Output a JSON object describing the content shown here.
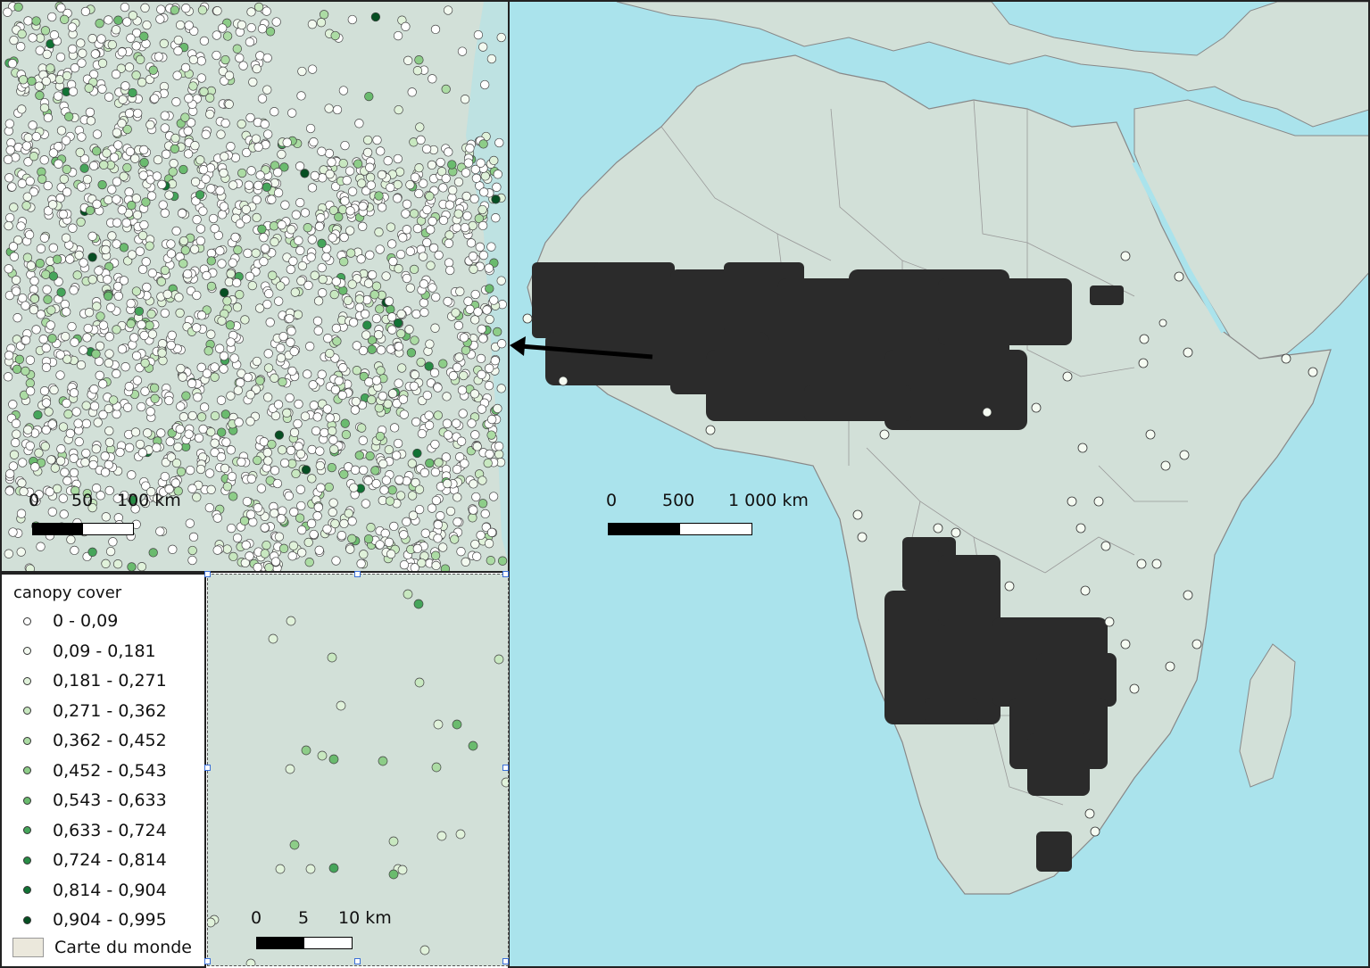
{
  "inset_scale": {
    "labels": [
      "0",
      "50",
      "100 km"
    ]
  },
  "main_scale": {
    "labels": [
      "0",
      "500",
      "1 000 km"
    ]
  },
  "detail_scale": {
    "labels": [
      "0",
      "5",
      "10 km"
    ]
  },
  "legend": {
    "title": "canopy cover",
    "classes": [
      {
        "label": "0 - 0,09",
        "color": "#ffffff"
      },
      {
        "label": "0,09 - 0,181",
        "color": "#f3faf0"
      },
      {
        "label": "0,181 - 0,271",
        "color": "#e0f2da"
      },
      {
        "label": "0,271 - 0,362",
        "color": "#c8e8c0"
      },
      {
        "label": "0,362 - 0,452",
        "color": "#acdca4"
      },
      {
        "label": "0,452 - 0,543",
        "color": "#8dcd88"
      },
      {
        "label": "0,543 - 0,633",
        "color": "#6abb6e"
      },
      {
        "label": "0,633 - 0,724",
        "color": "#45a55a"
      },
      {
        "label": "0,724 - 0,814",
        "color": "#288c45"
      },
      {
        "label": "0,814 - 0,904",
        "color": "#117234"
      },
      {
        "label": "0,904 - 0,995",
        "color": "#064f22"
      }
    ],
    "basemap_label": "Carte du monde",
    "basemap_color": "#ebe8dc"
  },
  "colors": {
    "ocean": "#aae3ec",
    "land": "#d2e0d8",
    "border": "#888888",
    "dense_points": "#2b2b2b"
  }
}
